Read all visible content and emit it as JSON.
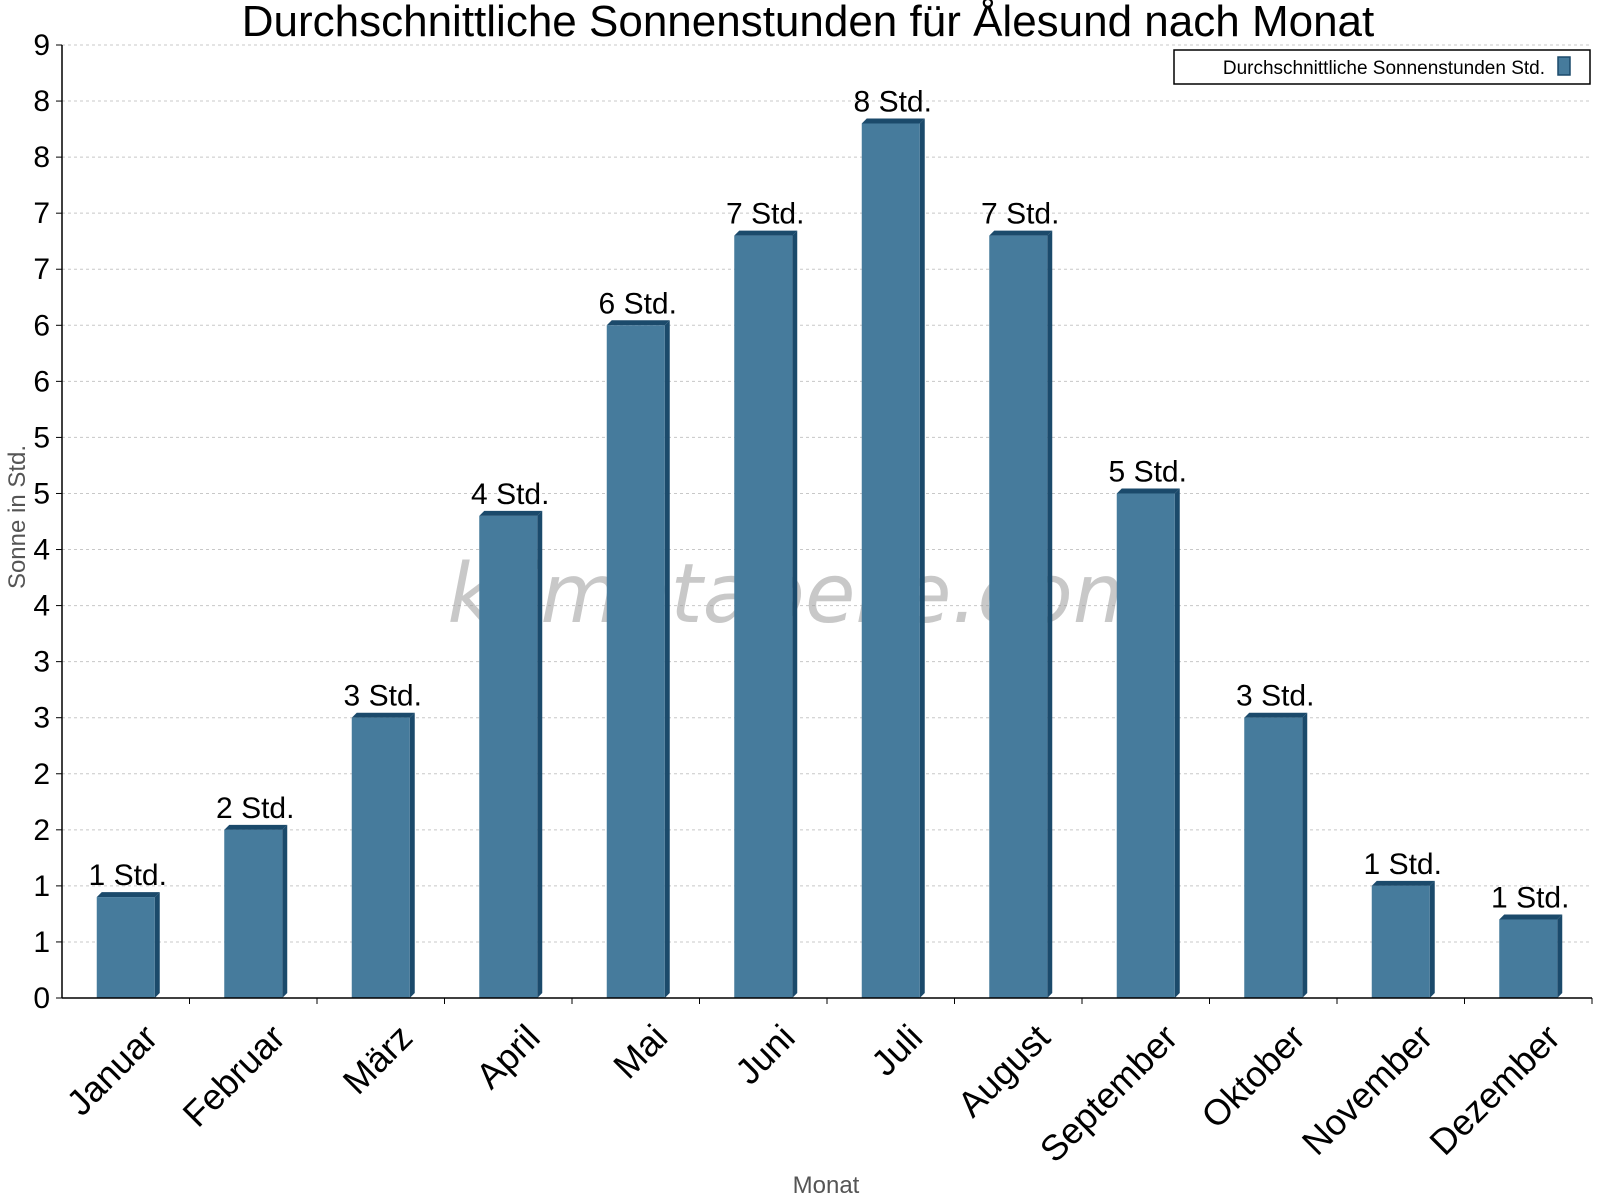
{
  "chart_data": {
    "type": "bar",
    "title": "Durchschnittliche Sonnenstunden für Ålesund nach Monat",
    "xlabel": "Monat",
    "ylabel": "Sonne in Std.",
    "ylim": [
      0,
      8.5
    ],
    "yticks": [
      {
        "value": 0,
        "label": "0"
      },
      {
        "value": 0.5,
        "label": "1"
      },
      {
        "value": 1,
        "label": "1"
      },
      {
        "value": 1.5,
        "label": "2"
      },
      {
        "value": 2,
        "label": "2"
      },
      {
        "value": 2.5,
        "label": "3"
      },
      {
        "value": 3,
        "label": "3"
      },
      {
        "value": 3.5,
        "label": "4"
      },
      {
        "value": 4,
        "label": "4"
      },
      {
        "value": 4.5,
        "label": "5"
      },
      {
        "value": 5,
        "label": "5"
      },
      {
        "value": 5.5,
        "label": "6"
      },
      {
        "value": 6,
        "label": "6"
      },
      {
        "value": 6.5,
        "label": "7"
      },
      {
        "value": 7,
        "label": "7"
      },
      {
        "value": 7.5,
        "label": "8"
      },
      {
        "value": 8,
        "label": "8"
      },
      {
        "value": 8.5,
        "label": "9"
      }
    ],
    "grid": true,
    "legend_position": "top-right",
    "categories": [
      "Januar",
      "Februar",
      "März",
      "April",
      "Mai",
      "Juni",
      "Juli",
      "August",
      "September",
      "Oktober",
      "November",
      "Dezember"
    ],
    "series": [
      {
        "name": "Durchschnittliche Sonnenstunden Std.",
        "color": "#467b9c",
        "values": [
          0.9,
          1.5,
          2.5,
          4.3,
          6.0,
          6.8,
          7.8,
          6.8,
          4.5,
          2.5,
          1.0,
          0.7
        ],
        "labels": [
          "1 Std.",
          "2 Std.",
          "3 Std.",
          "4 Std.",
          "6 Std.",
          "7 Std.",
          "8 Std.",
          "7 Std.",
          "5 Std.",
          "3 Std.",
          "1 Std.",
          "1 Std."
        ]
      }
    ],
    "watermark": "klimatabelle.com"
  }
}
